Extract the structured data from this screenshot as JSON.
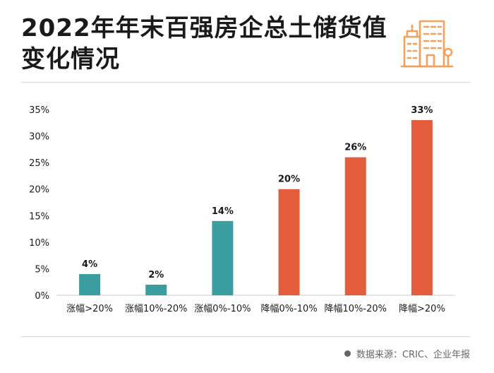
{
  "header": {
    "title_line1": "2022年年末百强房企总土储货值",
    "title_line2": "变化情况"
  },
  "colors": {
    "teal": "#3a9ea0",
    "orange": "#e35d3d",
    "icon": "#f2a15f",
    "axis": "#cccccc"
  },
  "icon": "building-icon",
  "source": {
    "text": "数据来源：CRIC、企业年报"
  },
  "chart_data": {
    "type": "bar",
    "categories": [
      "涨幅>20%",
      "涨幅10%-20%",
      "涨幅0%-10%",
      "降幅0%-10%",
      "降幅10%-20%",
      "降幅>20%"
    ],
    "values": [
      4,
      2,
      14,
      20,
      26,
      33
    ],
    "data_labels": [
      "4%",
      "2%",
      "14%",
      "20%",
      "26%",
      "33%"
    ],
    "bar_colors": [
      "#3a9ea0",
      "#3a9ea0",
      "#3a9ea0",
      "#e35d3d",
      "#e35d3d",
      "#e35d3d"
    ],
    "ylim": [
      0,
      35
    ],
    "yticks": [
      "0%",
      "5%",
      "10%",
      "15%",
      "20%",
      "25%",
      "30%",
      "35%"
    ],
    "title": "",
    "xlabel": "",
    "ylabel": "",
    "grid": false,
    "legend": "none"
  }
}
